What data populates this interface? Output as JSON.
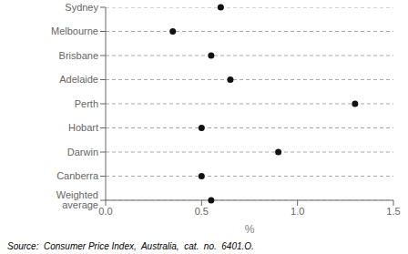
{
  "chart_data": {
    "type": "dot",
    "orientation": "horizontal",
    "categories": [
      "Sydney",
      "Melbourne",
      "Brisbane",
      "Adelaide",
      "Perth",
      "Hobart",
      "Darwin",
      "Canberra",
      "Weighted average"
    ],
    "values": [
      0.6,
      0.35,
      0.55,
      0.65,
      1.3,
      0.5,
      0.9,
      0.5,
      0.55
    ],
    "color": "#111111",
    "line_style": "dashed",
    "xlabel": "%",
    "xlim": [
      0.0,
      1.5
    ],
    "xticks": [
      {
        "value": 0.0,
        "label": "0.0"
      },
      0.5,
      {
        "value": 1.0,
        "label": "1.0"
      },
      1.5
    ],
    "grid": false,
    "annotation": "Source:  Consumer Price Index,  Australia,  cat.  no.  6401.O."
  }
}
